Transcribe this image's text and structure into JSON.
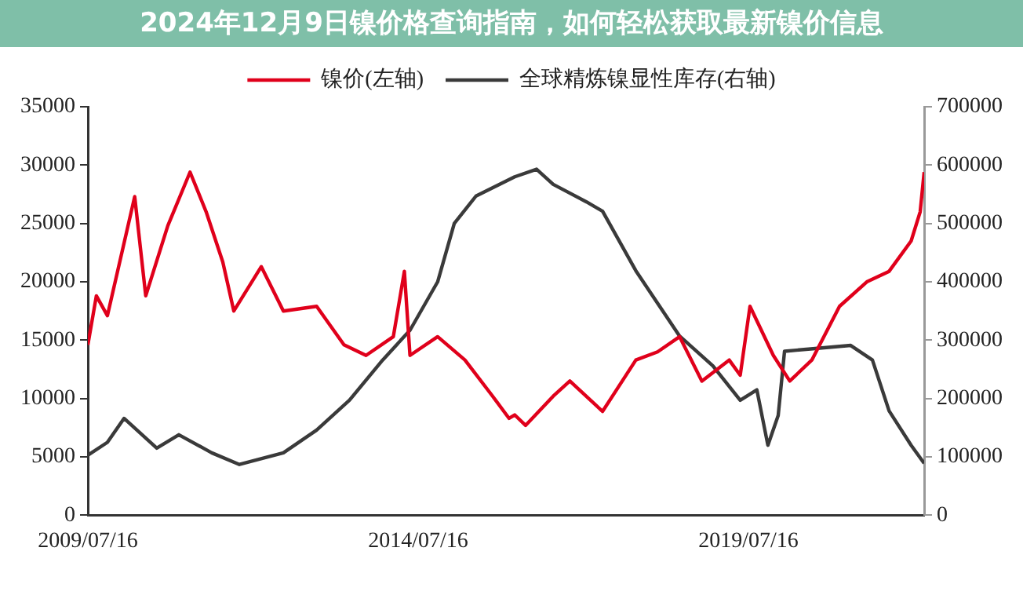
{
  "chart_data": {
    "type": "line",
    "title": "2024年12月9日镍价格查询指南，如何轻松获取最新镍价信息",
    "xlim": [
      "2009-07-16",
      "2022-03-14"
    ],
    "xticks": [
      {
        "value": "2009-07-16",
        "label": "2009/07/16"
      },
      {
        "value": "2014-07-16",
        "label": "2014/07/16"
      },
      {
        "value": "2019-07-16",
        "label": "2019/07/16"
      }
    ],
    "ylim": [
      0,
      35000
    ],
    "yticks": [
      0,
      5000,
      10000,
      15000,
      20000,
      25000,
      30000,
      35000
    ],
    "y2lim": [
      0,
      700000
    ],
    "y2ticks": [
      0,
      100000,
      200000,
      300000,
      400000,
      500000,
      600000,
      700000
    ],
    "legend": "top",
    "grid": false,
    "marker": "none",
    "line_style": "solid",
    "series": [
      {
        "name": "镍价(左轴)",
        "color": "#e0001b",
        "x": [
          "2009-07-16",
          "2009-09",
          "2009-11",
          "2010-04",
          "2010-06",
          "2010-10",
          "2011-02",
          "2011-05",
          "2011-08",
          "2011-10",
          "2012-03",
          "2012-07",
          "2013-01",
          "2013-06",
          "2013-10",
          "2014-03",
          "2014-05",
          "2014-06",
          "2014-11",
          "2015-04",
          "2015-09",
          "2015-12",
          "2016-01",
          "2016-03",
          "2016-08",
          "2016-11",
          "2017-05",
          "2017-11",
          "2018-03",
          "2018-07",
          "2018-11",
          "2019-04",
          "2019-06",
          "2019-07-25",
          "2019-12",
          "2020-03",
          "2020-07",
          "2020-12",
          "2021-05",
          "2021-09",
          "2022-01",
          "2022-02-20",
          "2022-03-14"
        ],
        "values": [
          14600,
          18800,
          17100,
          27300,
          18800,
          24800,
          29400,
          26000,
          21700,
          17500,
          21300,
          17500,
          17900,
          14600,
          13700,
          15300,
          20900,
          13700,
          15300,
          13300,
          10200,
          8300,
          8600,
          7700,
          10200,
          11500,
          8900,
          13300,
          14000,
          15300,
          11500,
          13300,
          12000,
          17900,
          13700,
          11500,
          13300,
          17900,
          20000,
          20900,
          23500,
          26000,
          29400
        ]
      },
      {
        "name": "全球精炼镍显性库存(右轴)",
        "color": "#3a3a3a",
        "axis": "y2",
        "x": [
          "2009-07-16",
          "2009-11",
          "2010-02",
          "2010-08",
          "2010-12",
          "2011-06",
          "2011-11",
          "2012-07",
          "2013-01",
          "2013-07",
          "2014-01",
          "2014-06",
          "2014-11",
          "2015-02",
          "2015-06",
          "2016-01",
          "2016-05",
          "2016-08",
          "2017-02",
          "2017-05",
          "2017-11",
          "2018-07",
          "2019-01",
          "2019-06",
          "2019-09",
          "2019-11",
          "2019-12-28",
          "2020-02",
          "2020-08",
          "2021-02",
          "2021-06",
          "2021-09",
          "2022-01",
          "2022-03-14"
        ],
        "values": [
          103000,
          125000,
          166000,
          115000,
          138000,
          107000,
          87000,
          107000,
          146000,
          197000,
          266000,
          317000,
          400000,
          500000,
          547000,
          580000,
          593000,
          567000,
          537000,
          521000,
          419000,
          307000,
          256000,
          197000,
          215000,
          120000,
          171000,
          281000,
          286000,
          291000,
          266000,
          179000,
          120000,
          89000
        ]
      }
    ]
  }
}
